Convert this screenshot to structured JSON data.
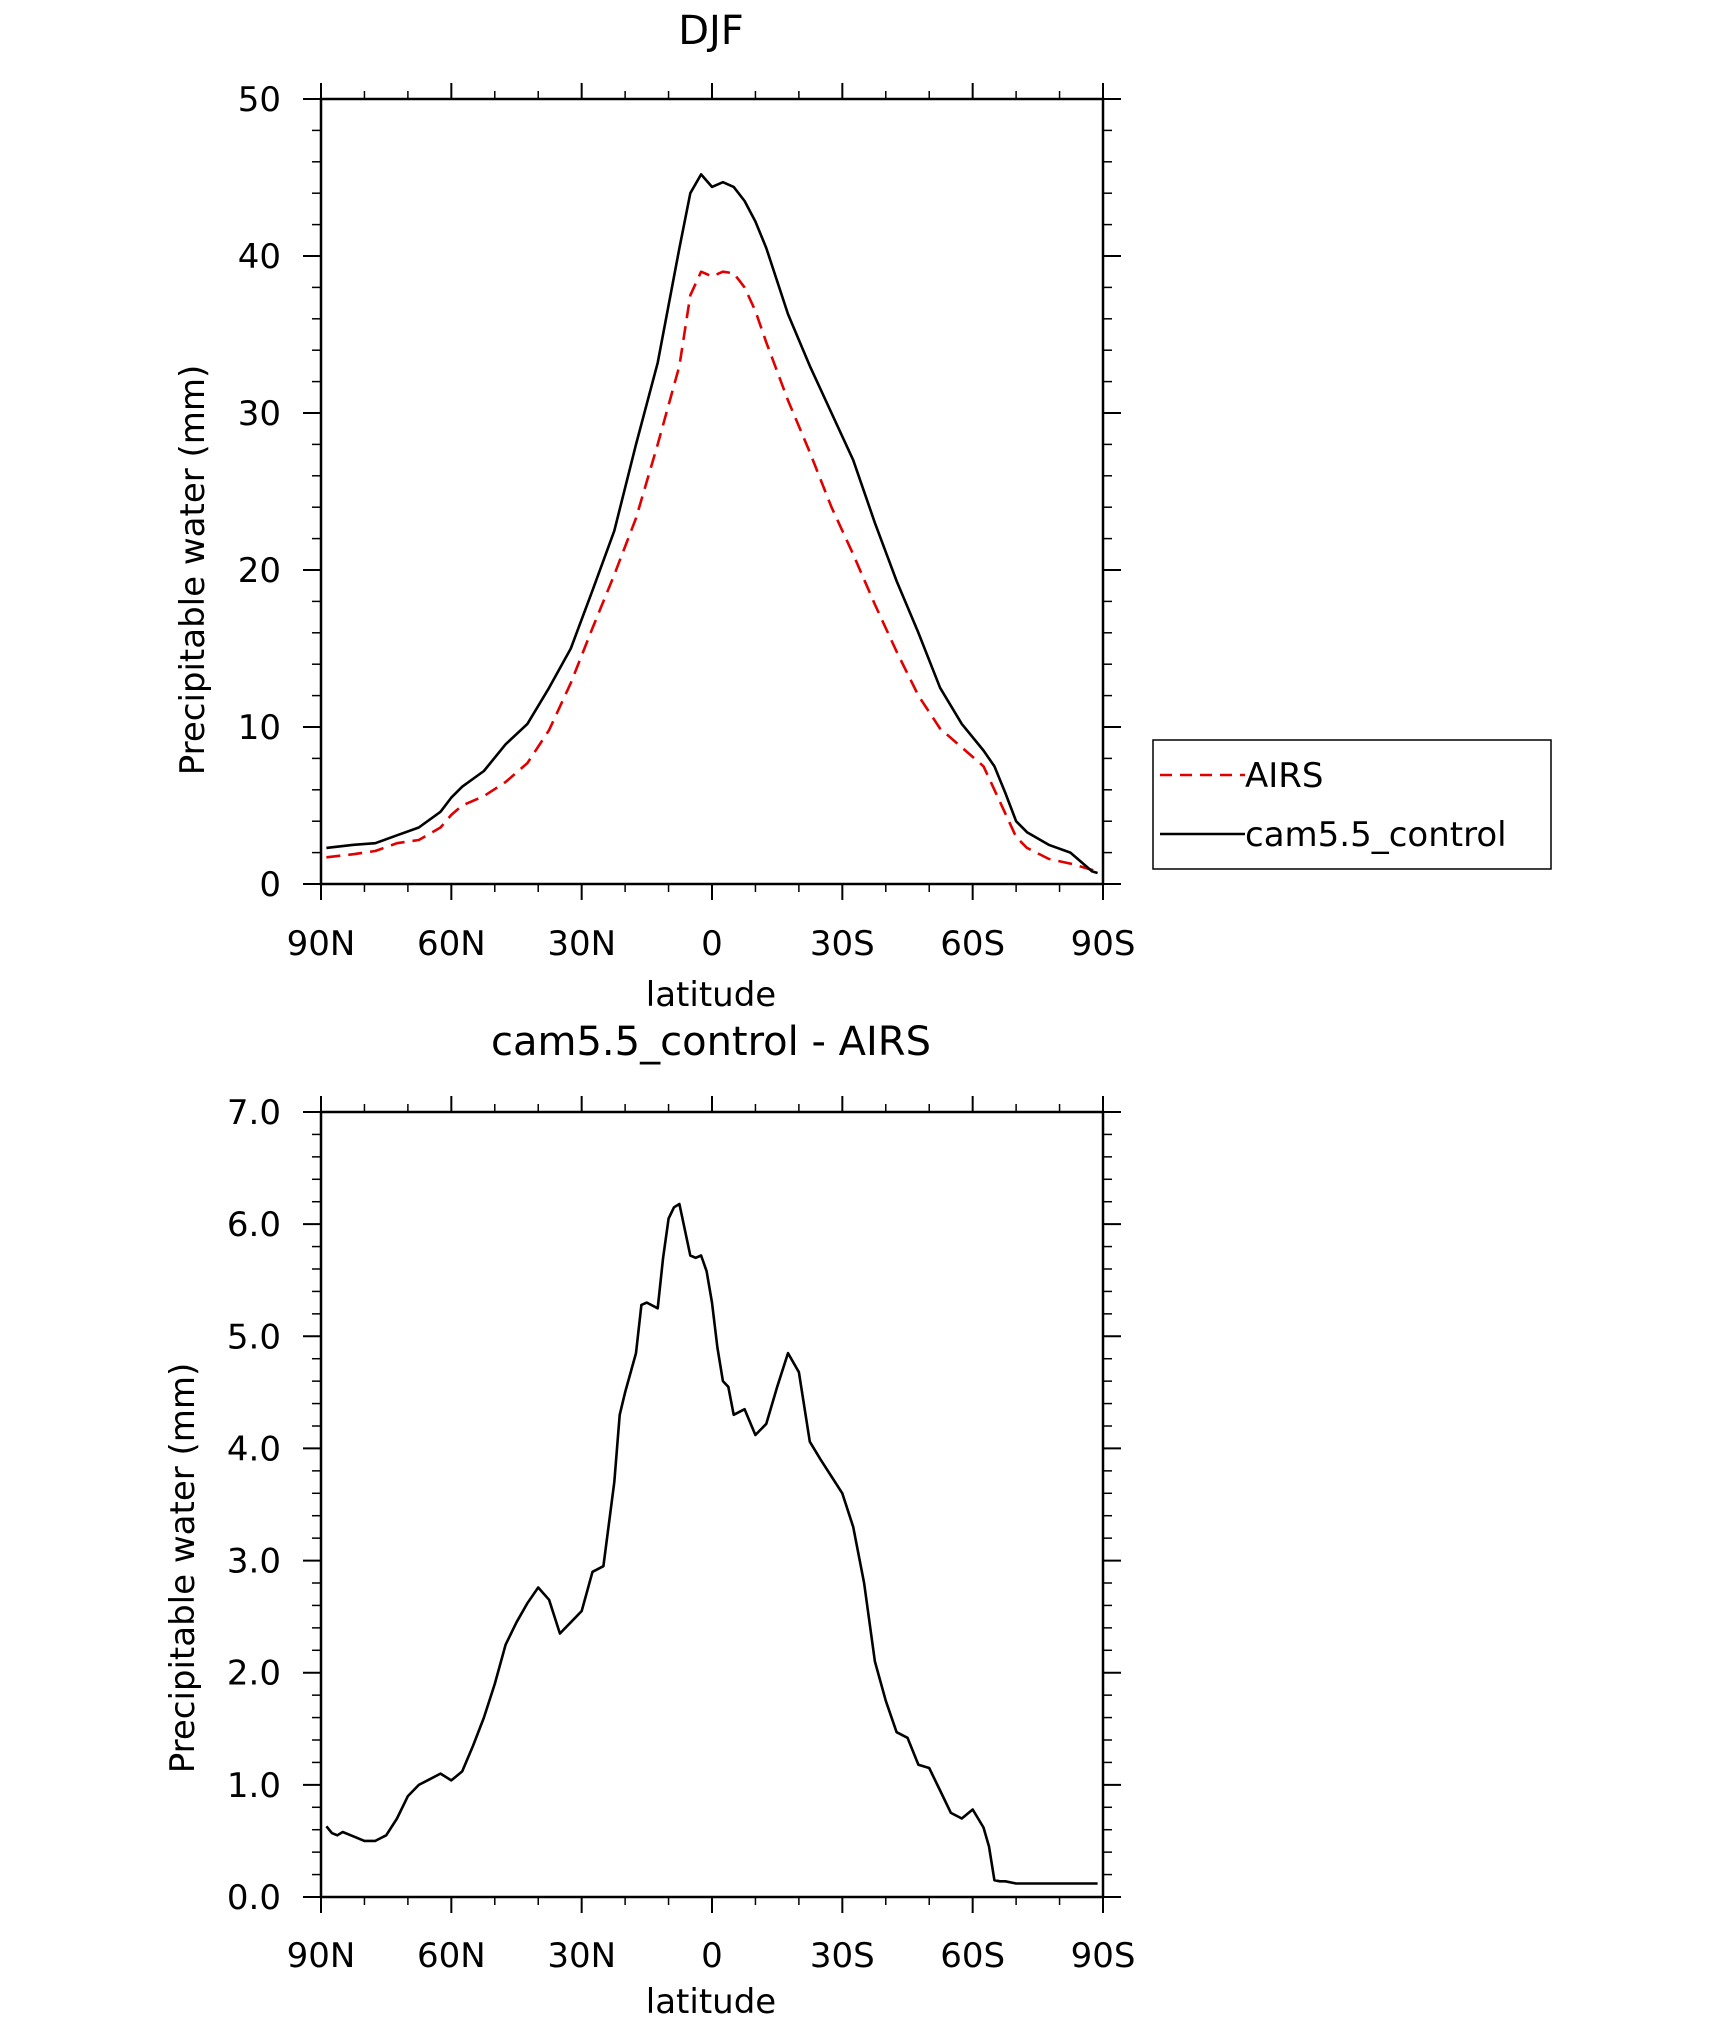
{
  "chart_data": [
    {
      "type": "line",
      "title": "DJF",
      "xlabel": "latitude",
      "ylabel": "Precipitable water (mm)",
      "xlim": [
        90,
        -90
      ],
      "ylim": [
        0,
        50
      ],
      "x_tick_values": [
        90,
        60,
        30,
        0,
        -30,
        -60,
        -90
      ],
      "x_tick_labels": [
        "90N",
        "60N",
        "30N",
        "0",
        "30S",
        "60S",
        "90S"
      ],
      "y_tick_values": [
        0,
        10,
        20,
        30,
        40,
        50
      ],
      "y_tick_labels": [
        "0",
        "10",
        "20",
        "30",
        "40",
        "50"
      ],
      "legend_position": "right",
      "series": [
        {
          "name": "AIRS",
          "color": "#e00000",
          "dash": "dashed",
          "x": [
            88.75,
            82.5,
            77.5,
            72.5,
            67.5,
            62.5,
            60,
            57.5,
            52.5,
            47.5,
            42.5,
            37.5,
            32.5,
            27.5,
            22.5,
            17.5,
            12.5,
            7.5,
            5,
            2.5,
            0,
            -2.5,
            -5,
            -7.5,
            -10,
            -12.5,
            -17.5,
            -22.5,
            -27.5,
            -32.5,
            -37.5,
            -42.5,
            -47.5,
            -52.5,
            -57.5,
            -62.5,
            -65,
            -67.5,
            -70,
            -72.5,
            -77.5,
            -82.5,
            -87.5,
            -88.75
          ],
          "y": [
            1.7,
            1.9,
            2.1,
            2.6,
            2.8,
            3.6,
            4.4,
            5.0,
            5.6,
            6.5,
            7.7,
            9.8,
            12.8,
            16.3,
            19.7,
            23.3,
            28.0,
            33.0,
            37.5,
            39.0,
            38.7,
            39.0,
            38.9,
            38.0,
            36.5,
            34.5,
            30.8,
            27.5,
            24.0,
            21.0,
            17.8,
            14.8,
            12.0,
            9.9,
            8.7,
            7.5,
            6.0,
            4.5,
            3.0,
            2.3,
            1.6,
            1.3,
            0.9,
            0.7
          ]
        },
        {
          "name": "cam5.5_control",
          "color": "#000000",
          "dash": "solid",
          "x": [
            88.75,
            82.5,
            77.5,
            72.5,
            67.5,
            62.5,
            60,
            57.5,
            52.5,
            47.5,
            42.5,
            37.5,
            32.5,
            27.5,
            22.5,
            17.5,
            12.5,
            7.5,
            5,
            2.5,
            0,
            -2.5,
            -5,
            -7.5,
            -10,
            -12.5,
            -17.5,
            -22.5,
            -27.5,
            -32.5,
            -37.5,
            -42.5,
            -47.5,
            -52.5,
            -57.5,
            -62.5,
            -65,
            -67.5,
            -70,
            -72.5,
            -77.5,
            -82.5,
            -87.5,
            -88.75
          ],
          "y": [
            2.3,
            2.5,
            2.6,
            3.1,
            3.6,
            4.6,
            5.5,
            6.2,
            7.2,
            8.9,
            10.2,
            12.5,
            15.0,
            18.7,
            22.5,
            28.0,
            33.2,
            40.5,
            44.0,
            45.2,
            44.4,
            44.7,
            44.4,
            43.5,
            42.2,
            40.5,
            36.3,
            33.0,
            30.0,
            27.0,
            23.0,
            19.3,
            16.0,
            12.5,
            10.2,
            8.5,
            7.5,
            5.8,
            4.0,
            3.3,
            2.5,
            2.0,
            0.8,
            0.7
          ]
        }
      ]
    },
    {
      "type": "line",
      "title": "cam5.5_control - AIRS",
      "xlabel": "latitude",
      "ylabel": "Precipitable water (mm)",
      "xlim": [
        90,
        -90
      ],
      "ylim": [
        0,
        7
      ],
      "x_tick_values": [
        90,
        60,
        30,
        0,
        -30,
        -60,
        -90
      ],
      "x_tick_labels": [
        "90N",
        "60N",
        "30N",
        "0",
        "30S",
        "60S",
        "90S"
      ],
      "y_tick_values": [
        0,
        1,
        2,
        3,
        4,
        5,
        6,
        7
      ],
      "y_tick_labels": [
        "0.0",
        "1.0",
        "2.0",
        "3.0",
        "4.0",
        "5.0",
        "6.0",
        "7.0"
      ],
      "series": [
        {
          "color": "#000000",
          "dash": "solid",
          "x": [
            88.75,
            87.5,
            86.25,
            85,
            82.5,
            80,
            77.5,
            75,
            72.5,
            70,
            67.5,
            65,
            62.5,
            60,
            58.75,
            57.5,
            55,
            52.5,
            50,
            47.5,
            45,
            42.5,
            40,
            37.5,
            35,
            32.5,
            30,
            27.5,
            25,
            22.5,
            21.25,
            20,
            17.5,
            16.25,
            15,
            12.5,
            11.25,
            10,
            8.75,
            7.5,
            5,
            3.75,
            2.5,
            1.25,
            0,
            -1.25,
            -2.5,
            -3.75,
            -5,
            -7.5,
            -10,
            -12.5,
            -15,
            -17.5,
            -20,
            -22.5,
            -25,
            -27.5,
            -30,
            -32.5,
            -35,
            -37.5,
            -40,
            -42.5,
            -45,
            -47.5,
            -50,
            -52.5,
            -55,
            -57.5,
            -60,
            -62.5,
            -63.75,
            -65,
            -66.25,
            -67.5,
            -70,
            -72.5,
            -75,
            -77.5,
            -80,
            -82.5,
            -85,
            -87.5,
            -88.75
          ],
          "y": [
            0.63,
            0.57,
            0.55,
            0.58,
            0.54,
            0.5,
            0.5,
            0.55,
            0.7,
            0.9,
            1.0,
            1.05,
            1.1,
            1.04,
            1.08,
            1.12,
            1.35,
            1.6,
            1.9,
            2.25,
            2.45,
            2.62,
            2.76,
            2.65,
            2.35,
            2.45,
            2.55,
            2.9,
            2.95,
            3.7,
            4.3,
            4.5,
            4.85,
            5.28,
            5.3,
            5.25,
            5.7,
            6.05,
            6.15,
            6.18,
            5.72,
            5.7,
            5.72,
            5.58,
            5.3,
            4.9,
            4.6,
            4.55,
            4.3,
            4.35,
            4.12,
            4.22,
            4.55,
            4.85,
            4.68,
            4.06,
            3.9,
            3.75,
            3.6,
            3.3,
            2.8,
            2.1,
            1.75,
            1.47,
            1.42,
            1.18,
            1.15,
            0.95,
            0.75,
            0.7,
            0.78,
            0.62,
            0.45,
            0.15,
            0.14,
            0.14,
            0.12,
            0.12,
            0.12,
            0.12,
            0.12,
            0.12,
            0.12,
            0.12,
            0.12
          ]
        }
      ]
    }
  ],
  "legend": {
    "items": [
      {
        "label": "AIRS",
        "color": "#e00000",
        "dash": "dashed"
      },
      {
        "label": "cam5.5_control",
        "color": "#000000",
        "dash": "solid"
      }
    ]
  }
}
